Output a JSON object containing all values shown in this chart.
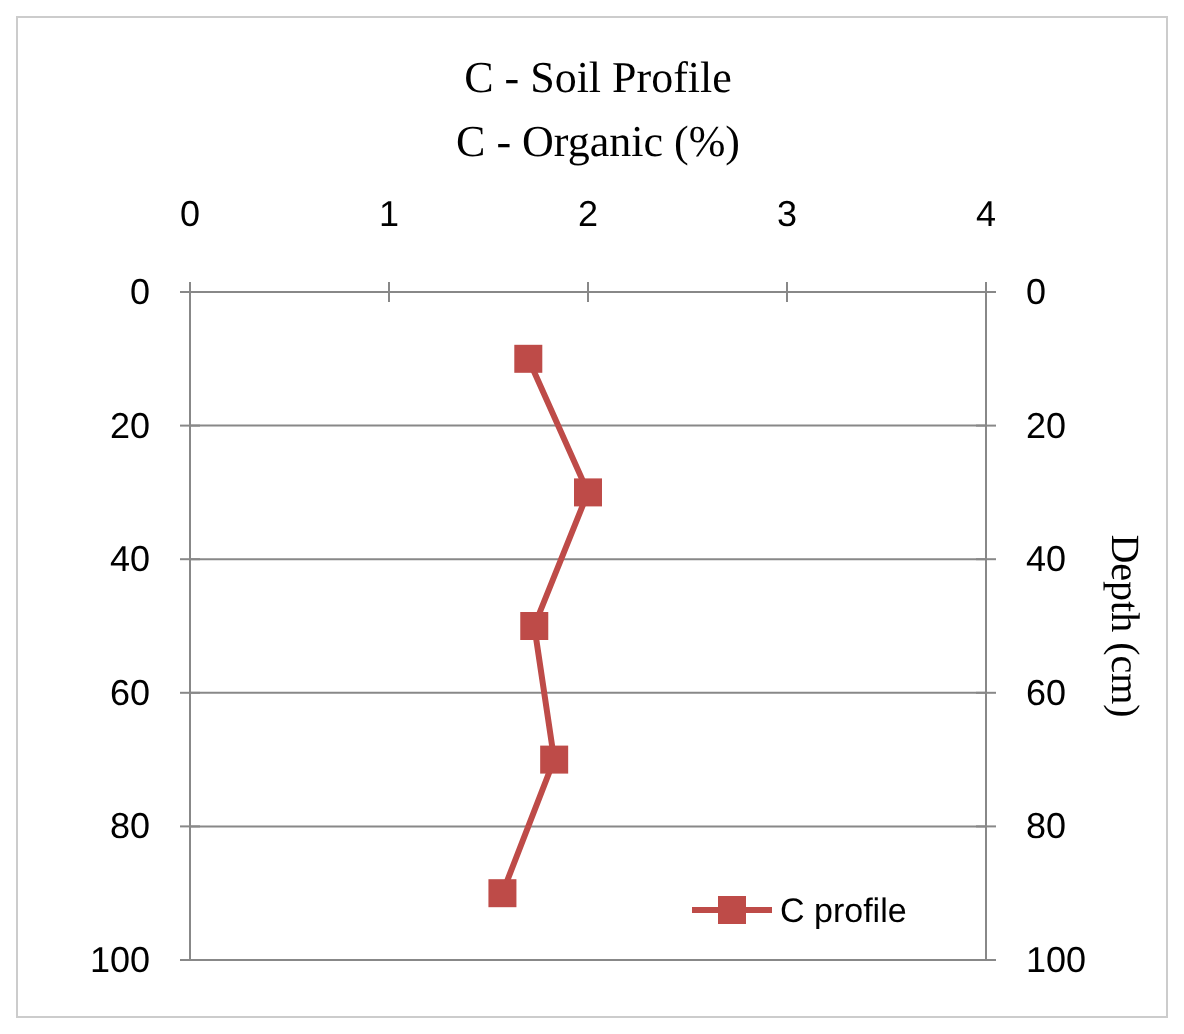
{
  "chart_data": {
    "type": "line",
    "title": "C - Soil Profile",
    "xlabel": "C - Organic (%)",
    "y2label": "Depth (cm)",
    "xlim": [
      0,
      4
    ],
    "xticks": [
      0,
      1,
      2,
      3,
      4
    ],
    "ylim": [
      100,
      0
    ],
    "yticks": [
      0,
      20,
      40,
      60,
      80,
      100
    ],
    "y2lim": [
      100,
      0
    ],
    "y2ticks": [
      0,
      20,
      40,
      60,
      80,
      100
    ],
    "grid": "y",
    "legend": "bottom right",
    "marker": "square",
    "line_style": "solid",
    "series": [
      {
        "name": "C profile",
        "color": "#be4b48",
        "x": [
          1.7,
          2.0,
          1.73,
          1.83,
          1.57
        ],
        "values": [
          10,
          30,
          50,
          70,
          90
        ]
      }
    ]
  }
}
